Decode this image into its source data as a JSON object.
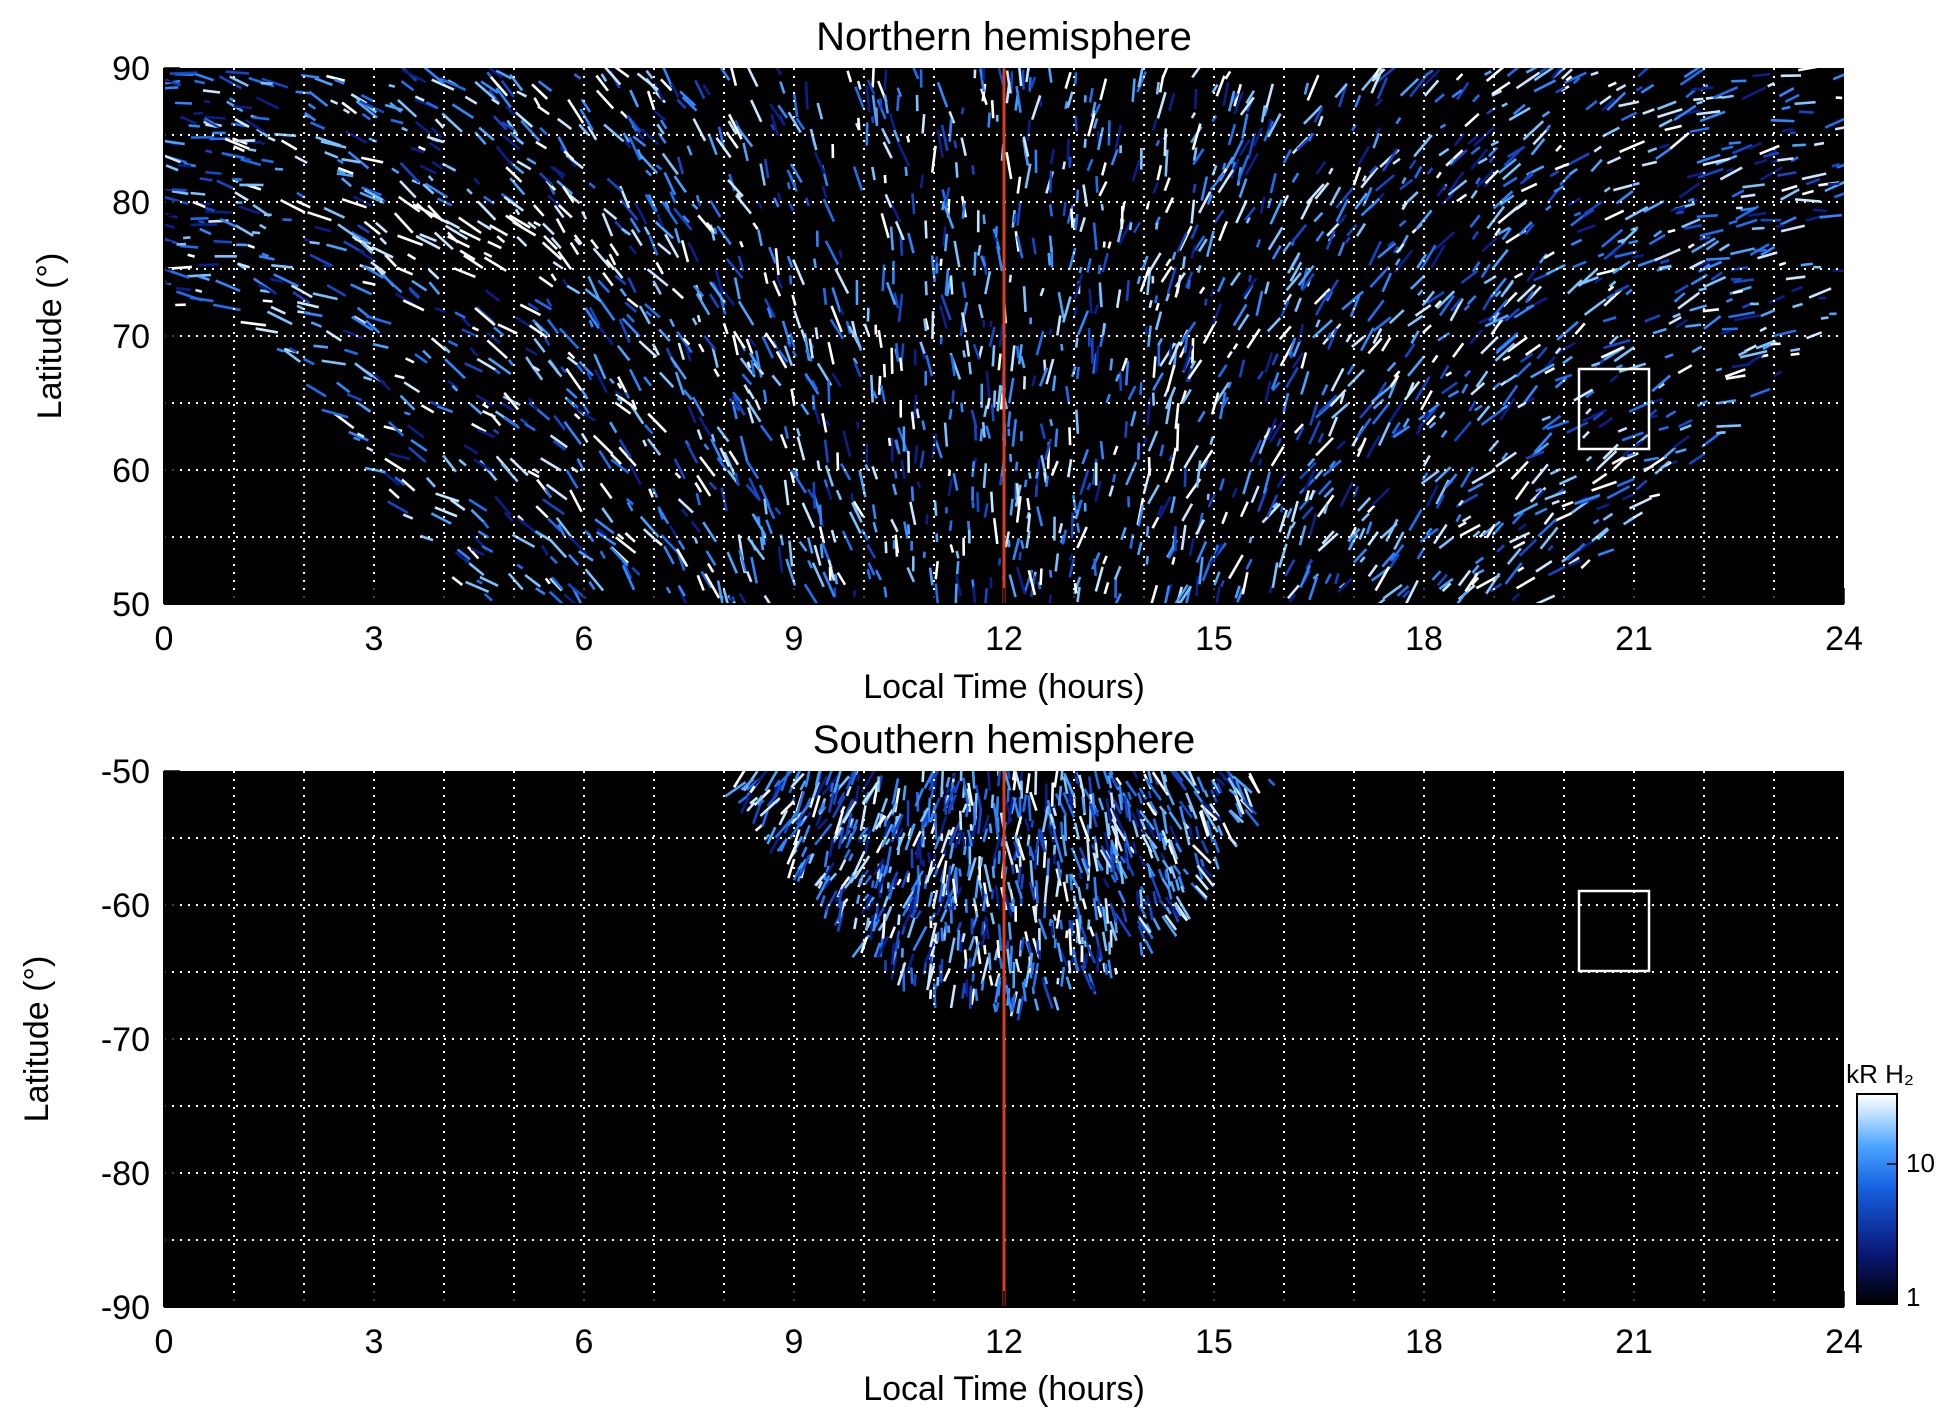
{
  "chart_data": [
    {
      "type": "heatmap",
      "title": "Northern hemisphere",
      "xlabel": "Local Time (hours)",
      "ylabel": "Latitude (°)",
      "xlim": [
        0,
        24
      ],
      "ylim": [
        50,
        90
      ],
      "xticks": [
        "0",
        "3",
        "6",
        "9",
        "12",
        "15",
        "18",
        "21",
        "24"
      ],
      "yticks": [
        "50",
        "60",
        "70",
        "80",
        "90"
      ],
      "grid": true,
      "marker_line_local_time": 12,
      "marker_line_color": "#d9401a",
      "box": {
        "lt_range": [
          20.2,
          21.2
        ],
        "lat_range": [
          61.5,
          67.5
        ]
      },
      "coverage": "bright arc near 73-80° at 3-6.5 LT; emission poleward of ~70° at 0 and 24 LT extending to 50° between ~4 and ~20 LT"
    },
    {
      "type": "heatmap",
      "title": "Southern hemisphere",
      "xlabel": "Local Time (hours)",
      "ylabel": "Latitude (°)",
      "xlim": [
        0,
        24
      ],
      "ylim": [
        -90,
        -50
      ],
      "xticks": [
        "0",
        "3",
        "6",
        "9",
        "12",
        "15",
        "18",
        "21",
        "24"
      ],
      "yticks": [
        "-50",
        "-60",
        "-70",
        "-80",
        "-90"
      ],
      "grid": true,
      "marker_line_local_time": 12,
      "marker_line_color": "#d9401a",
      "box": {
        "lt_range": [
          20.2,
          21.2
        ],
        "lat_range": [
          -65,
          -59
        ]
      },
      "coverage": "emission confined to ~8-16 LT, from -50° down to about -68° at 12 LT"
    }
  ],
  "colorbar": {
    "label": "kR H₂",
    "ticks": [
      "10",
      "1"
    ],
    "scale": "log",
    "range": [
      1,
      30
    ],
    "colors": [
      "#000000",
      "#0a1a7a",
      "#1560e0",
      "#4aa3ff",
      "#c9e6ff",
      "#ffffff"
    ]
  }
}
